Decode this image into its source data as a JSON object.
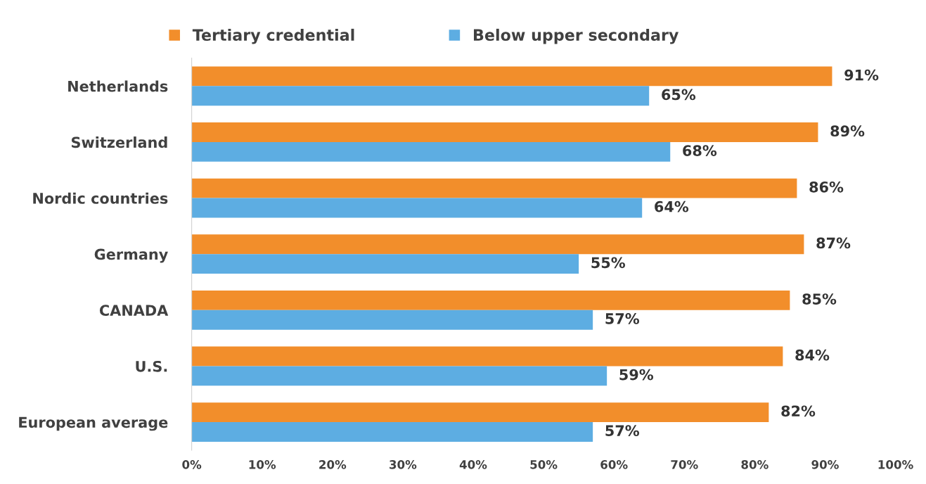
{
  "chart_data": {
    "type": "bar",
    "orientation": "horizontal",
    "categories": [
      "Netherlands",
      "Switzerland",
      "Nordic countries",
      "Germany",
      "CANADA",
      "U.S.",
      "European average"
    ],
    "series": [
      {
        "name": "Tertiary credential",
        "color": "#f28e2b",
        "values": [
          91,
          89,
          86,
          87,
          85,
          84,
          82
        ]
      },
      {
        "name": "Below upper secondary",
        "color": "#5dade2",
        "values": [
          65,
          68,
          64,
          55,
          57,
          59,
          57
        ]
      }
    ],
    "xlim": [
      0,
      100
    ],
    "xticks": [
      {
        "value": 0,
        "label": "0%"
      },
      {
        "value": 10,
        "label": "10%"
      },
      {
        "value": 20,
        "label": "20%"
      },
      {
        "value": 30,
        "label": "30%"
      },
      {
        "value": 40,
        "label": "40%"
      },
      {
        "value": 50,
        "label": "50%"
      },
      {
        "value": 60,
        "label": "60%"
      },
      {
        "value": 70,
        "label": "70%"
      },
      {
        "value": 80,
        "label": "80%"
      },
      {
        "value": 90,
        "label": "90%"
      },
      {
        "value": 100,
        "label": "100%"
      }
    ],
    "value_labels": [
      [
        "91%",
        "89%",
        "86%",
        "87%",
        "85%",
        "84%",
        "82%"
      ],
      [
        "65%",
        "68%",
        "64%",
        "55%",
        "57%",
        "59%",
        "57%"
      ]
    ],
    "grid": false,
    "legend": "top"
  }
}
